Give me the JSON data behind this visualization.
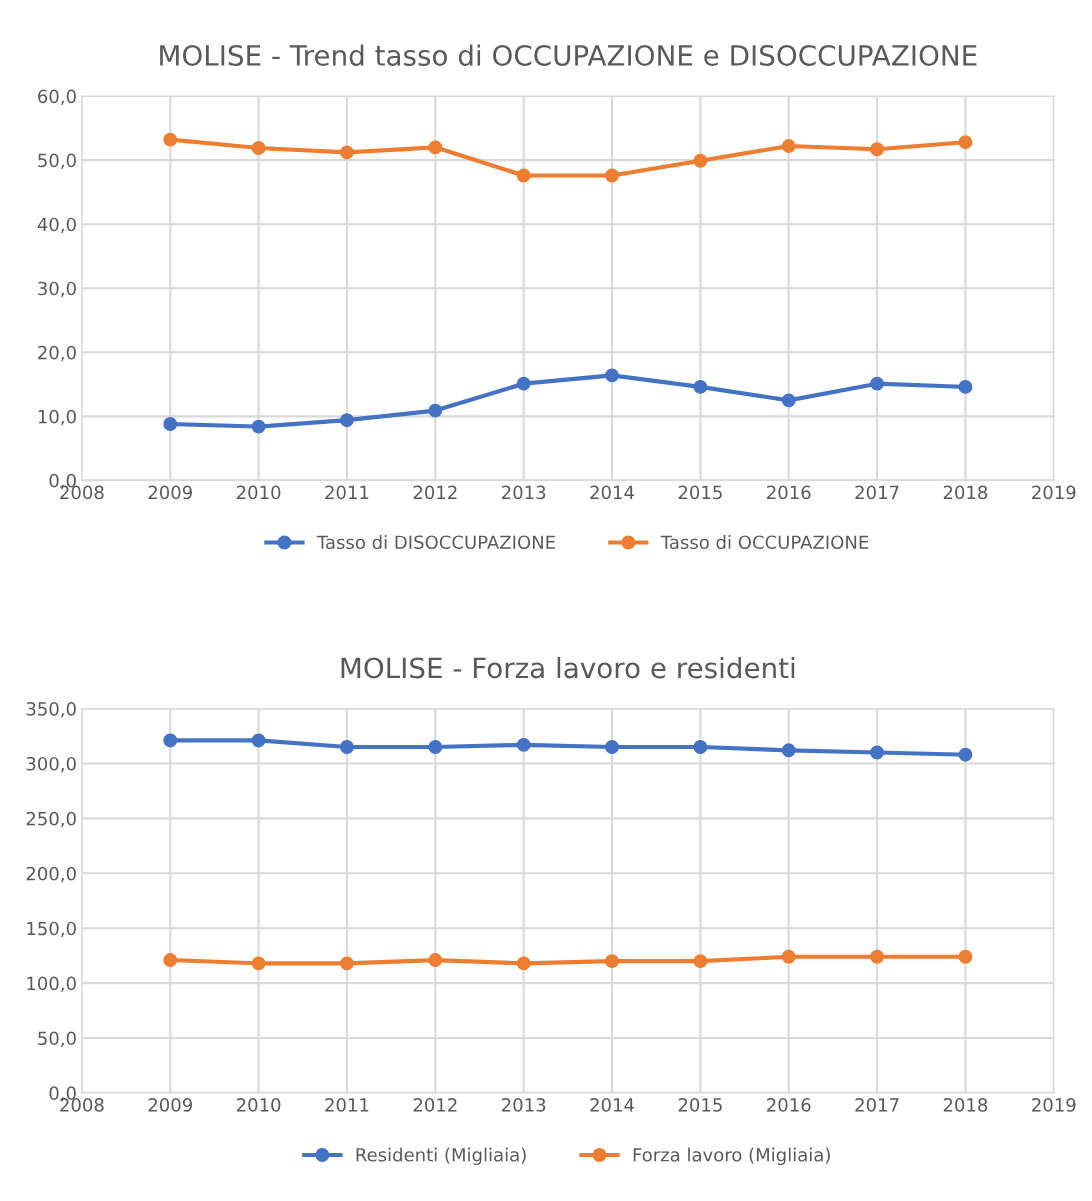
{
  "chart_data": [
    {
      "type": "line",
      "title": "MOLISE - Trend tasso di OCCUPAZIONE e DISOCCUPAZIONE",
      "x": [
        2009,
        2010,
        2011,
        2012,
        2013,
        2014,
        2015,
        2016,
        2017,
        2018
      ],
      "series": [
        {
          "name": "Tasso di DISOCCUPAZIONE",
          "color": "#4472c4",
          "values": [
            8.8,
            8.4,
            9.4,
            10.9,
            15.1,
            16.4,
            14.6,
            12.5,
            15.1,
            14.6
          ]
        },
        {
          "name": "Tasso di OCCUPAZIONE",
          "color": "#ed7d31",
          "values": [
            53.2,
            51.9,
            51.2,
            52.0,
            47.6,
            47.6,
            49.9,
            52.2,
            51.7,
            52.8
          ]
        }
      ],
      "xlim": [
        2008,
        2019
      ],
      "xticks": [
        2008,
        2009,
        2010,
        2011,
        2012,
        2013,
        2014,
        2015,
        2016,
        2017,
        2018,
        2019
      ],
      "ylim": [
        0,
        60
      ],
      "yticks": [
        {
          "value": 0,
          "label": "0,0"
        },
        {
          "value": 10,
          "label": "10,0"
        },
        {
          "value": 20,
          "label": "20,0"
        },
        {
          "value": 30,
          "label": "30,0"
        },
        {
          "value": 40,
          "label": "40,0"
        },
        {
          "value": 50,
          "label": "50,0"
        },
        {
          "value": 60,
          "label": "60,0"
        }
      ],
      "grid": true,
      "legend": "bottom",
      "marker": "circle",
      "line_style": "solid"
    },
    {
      "type": "line",
      "title": "MOLISE - Forza lavoro e residenti",
      "x": [
        2009,
        2010,
        2011,
        2012,
        2013,
        2014,
        2015,
        2016,
        2017,
        2018
      ],
      "series": [
        {
          "name": "Residenti (Migliaia)",
          "color": "#4472c4",
          "values": [
            321,
            321,
            315,
            315,
            317,
            315,
            315,
            312,
            310,
            308
          ]
        },
        {
          "name": "Forza lavoro (Migliaia)",
          "color": "#ed7d31",
          "values": [
            121,
            118,
            118,
            121,
            118,
            120,
            120,
            124,
            124,
            124
          ]
        }
      ],
      "xlim": [
        2008,
        2019
      ],
      "xticks": [
        2008,
        2009,
        2010,
        2011,
        2012,
        2013,
        2014,
        2015,
        2016,
        2017,
        2018,
        2019
      ],
      "ylim": [
        0,
        350
      ],
      "yticks": [
        {
          "value": 0,
          "label": "0,0"
        },
        {
          "value": 50,
          "label": "50,0"
        },
        {
          "value": 100,
          "label": "100,0"
        },
        {
          "value": 150,
          "label": "150,0"
        },
        {
          "value": 200,
          "label": "200,0"
        },
        {
          "value": 250,
          "label": "250,0"
        },
        {
          "value": 300,
          "label": "300,0"
        },
        {
          "value": 350,
          "label": "350,0"
        }
      ],
      "grid": true,
      "legend": "bottom",
      "marker": "circle",
      "line_style": "solid"
    }
  ]
}
